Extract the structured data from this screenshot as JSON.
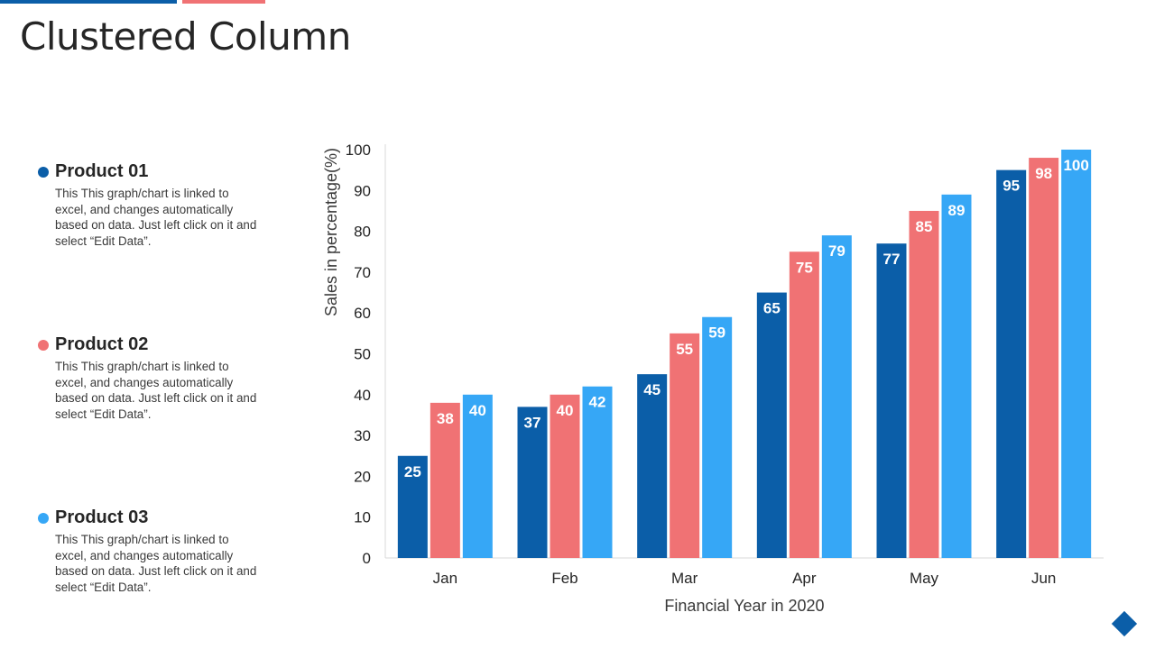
{
  "page": {
    "title": "Clustered Column"
  },
  "legend": [
    {
      "title": "Product 01",
      "color": "#0b5ea8",
      "description": "This This graph/chart is linked to excel, and changes automatically based on data. Just left click on it and select “Edit Data”."
    },
    {
      "title": "Product 02",
      "color": "#f07274",
      "description": "This This graph/chart is linked to excel, and changes automatically based on data. Just left click on it and select “Edit Data”."
    },
    {
      "title": "Product 03",
      "color": "#36a7f6",
      "description": "This This graph/chart is linked to excel, and changes automatically based on data. Just left click on it and select “Edit Data”."
    }
  ],
  "chart_data": {
    "type": "bar",
    "title": "",
    "xlabel": "Financial Year in 2020",
    "ylabel": "Sales in percentage(%)",
    "ylim": [
      0,
      100
    ],
    "yticks": [
      0,
      10,
      20,
      30,
      40,
      50,
      60,
      70,
      80,
      90,
      100
    ],
    "categories": [
      "Jan",
      "Feb",
      "Mar",
      "Apr",
      "May",
      "Jun"
    ],
    "series": [
      {
        "name": "Product 01",
        "color": "#0b5ea8",
        "values": [
          25,
          37,
          45,
          65,
          77,
          95
        ]
      },
      {
        "name": "Product 02",
        "color": "#f07274",
        "values": [
          38,
          40,
          55,
          75,
          85,
          98
        ]
      },
      {
        "name": "Product 03",
        "color": "#36a7f6",
        "values": [
          40,
          42,
          59,
          79,
          89,
          100
        ]
      }
    ],
    "data_labels": true,
    "grid": false
  }
}
